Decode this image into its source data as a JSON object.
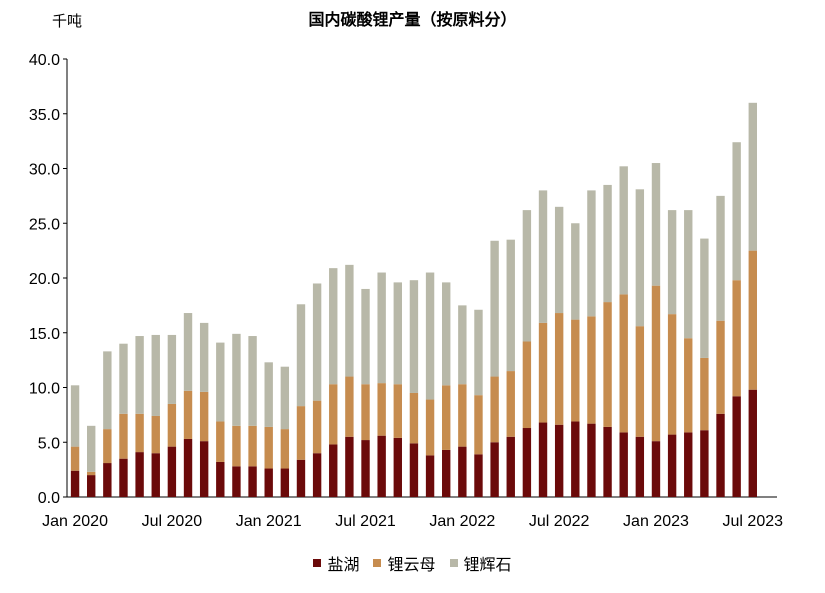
{
  "chart_data": {
    "type": "bar",
    "stacked": true,
    "title": "国内碳酸锂产量（按原料分）",
    "ylabel": "千吨",
    "ylim": [
      0,
      40
    ],
    "yticks": [
      "0.0",
      "5.0",
      "10.0",
      "15.0",
      "20.0",
      "25.0",
      "30.0",
      "35.0",
      "40.0"
    ],
    "categories": [
      "Jan 2020",
      "Feb 2020",
      "Mar 2020",
      "Apr 2020",
      "May 2020",
      "Jun 2020",
      "Jul 2020",
      "Aug 2020",
      "Sep 2020",
      "Oct 2020",
      "Nov 2020",
      "Dec 2020",
      "Jan 2021",
      "Feb 2021",
      "Mar 2021",
      "Apr 2021",
      "May 2021",
      "Jun 2021",
      "Jul 2021",
      "Aug 2021",
      "Sep 2021",
      "Oct 2021",
      "Nov 2021",
      "Dec 2021",
      "Jan 2022",
      "Feb 2022",
      "Mar 2022",
      "Apr 2022",
      "May 2022",
      "Jun 2022",
      "Jul 2022",
      "Aug 2022",
      "Sep 2022",
      "Oct 2022",
      "Nov 2022",
      "Dec 2022",
      "Jan 2023",
      "Feb 2023",
      "Mar 2023",
      "Apr 2023",
      "May 2023",
      "Jun 2023",
      "Jul 2023",
      "Aug 2023"
    ],
    "xtick_labels": [
      {
        "index": 0,
        "label": "Jan 2020"
      },
      {
        "index": 6,
        "label": "Jul 2020"
      },
      {
        "index": 12,
        "label": "Jan 2021"
      },
      {
        "index": 18,
        "label": "Jul 2021"
      },
      {
        "index": 24,
        "label": "Jan 2022"
      },
      {
        "index": 30,
        "label": "Jul 2022"
      },
      {
        "index": 36,
        "label": "Jan 2023"
      },
      {
        "index": 42,
        "label": "Jul 2023"
      }
    ],
    "series": [
      {
        "name": "盐湖",
        "color": "#6b0a0a",
        "values": [
          2.4,
          2.0,
          3.1,
          3.5,
          4.1,
          4.0,
          4.6,
          5.3,
          5.1,
          3.2,
          2.8,
          2.8,
          2.6,
          2.6,
          3.4,
          4.0,
          4.8,
          5.5,
          5.2,
          5.6,
          5.4,
          4.9,
          3.8,
          4.3,
          4.6,
          3.9,
          5.0,
          5.5,
          6.3,
          6.8,
          6.6,
          6.9,
          6.7,
          6.4,
          5.9,
          5.5,
          5.1,
          5.7,
          5.9,
          6.1,
          7.6,
          9.2,
          9.8,
          0
        ]
      },
      {
        "name": "锂云母",
        "color": "#c68c4f",
        "values": [
          2.2,
          0.3,
          3.1,
          4.1,
          3.5,
          3.4,
          3.9,
          4.4,
          4.5,
          3.7,
          3.7,
          3.7,
          3.8,
          3.6,
          4.9,
          4.8,
          5.5,
          5.5,
          5.1,
          4.8,
          4.9,
          4.6,
          5.1,
          5.9,
          5.7,
          5.4,
          6.0,
          6.0,
          7.9,
          9.1,
          10.2,
          9.3,
          9.8,
          11.4,
          12.6,
          10.1,
          14.2,
          11.0,
          8.6,
          6.6,
          8.5,
          10.6,
          12.7,
          0
        ]
      },
      {
        "name": "锂辉石",
        "color": "#b8b8a8",
        "values": [
          5.6,
          4.2,
          7.1,
          6.4,
          7.1,
          7.4,
          6.3,
          7.1,
          6.3,
          7.2,
          8.4,
          8.2,
          5.9,
          5.7,
          9.3,
          10.7,
          10.6,
          10.2,
          8.7,
          10.1,
          9.3,
          10.3,
          11.6,
          9.4,
          7.2,
          7.8,
          12.4,
          12.0,
          12.0,
          12.1,
          9.7,
          8.8,
          11.5,
          10.7,
          11.7,
          12.5,
          11.2,
          9.5,
          11.7,
          10.9,
          11.4,
          12.6,
          13.5,
          0
        ]
      }
    ],
    "grid": false,
    "legend_position": "bottom-center"
  }
}
